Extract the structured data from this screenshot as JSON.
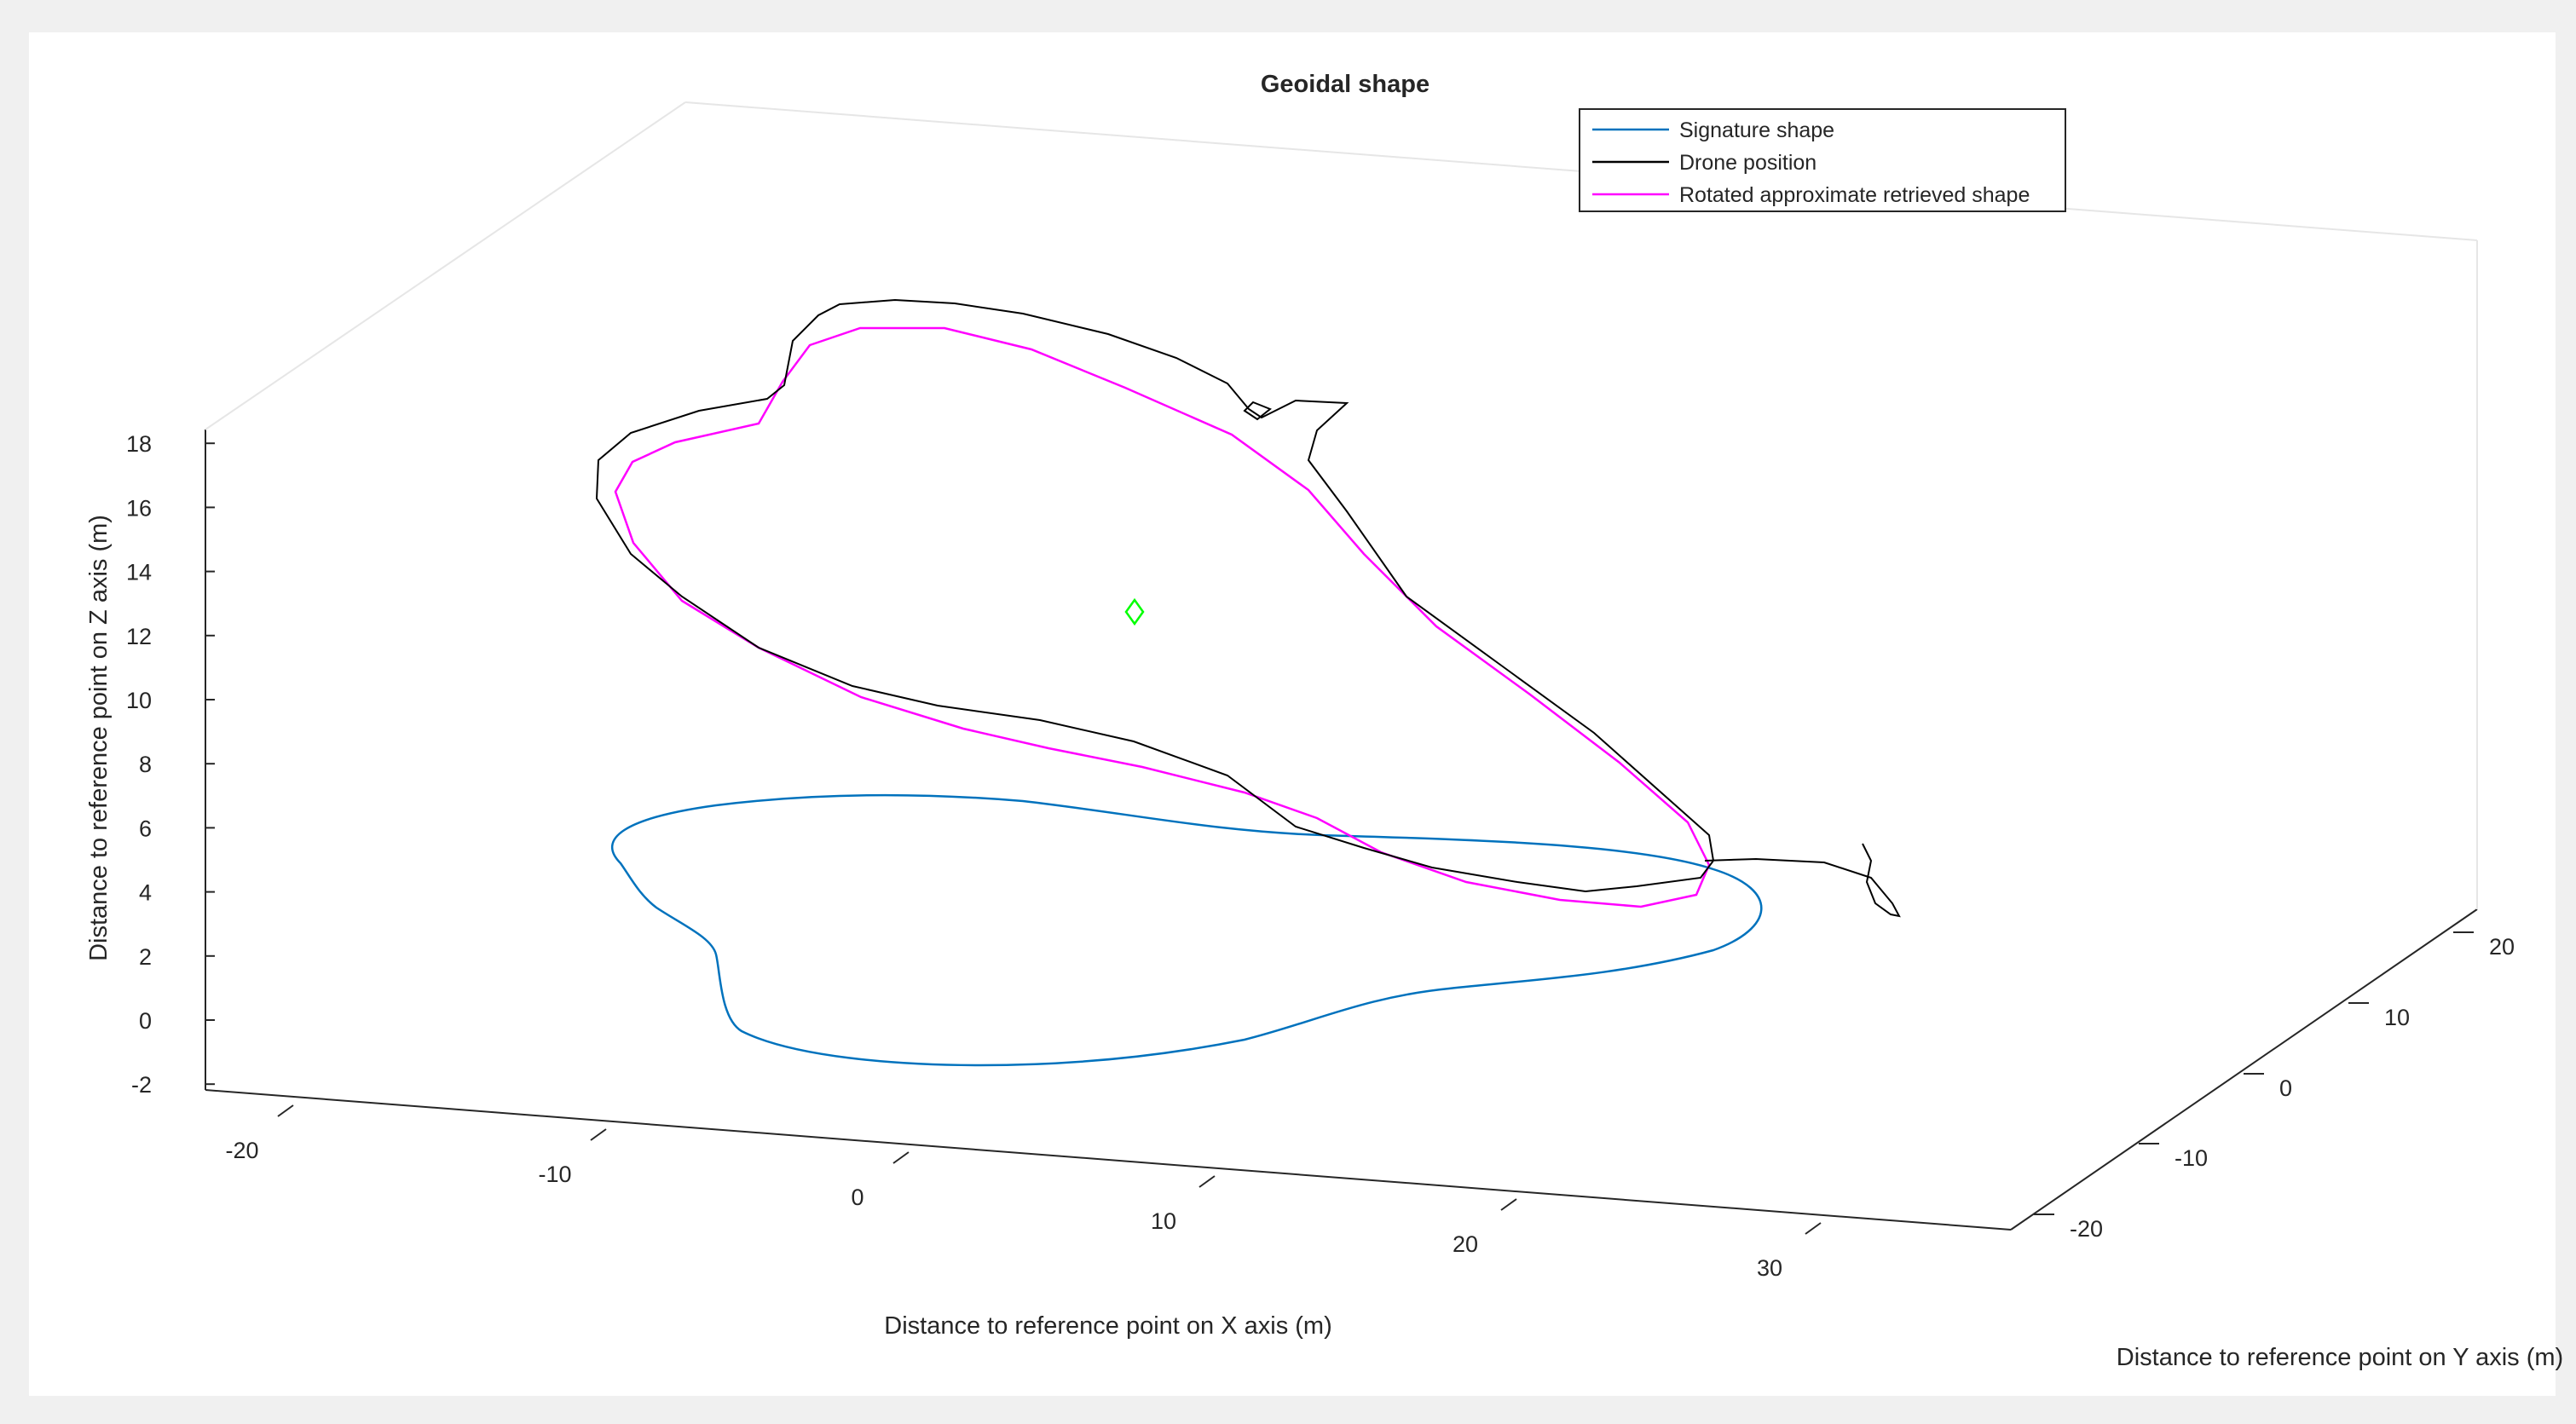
{
  "chart_data": {
    "type": "line",
    "title": "Geoidal shape",
    "xlabel": "Distance to reference point on X axis (m)",
    "ylabel": "Distance to reference point on Y axis (m)",
    "zlabel": "Distance to reference point on Z axis (m)",
    "x_ticks": [
      -20,
      -10,
      0,
      10,
      20,
      30
    ],
    "y_ticks": [
      -20,
      -10,
      0,
      10,
      20
    ],
    "z_ticks": [
      -2,
      0,
      2,
      4,
      6,
      8,
      10,
      12,
      14,
      16,
      18
    ],
    "z_lim": [
      -3,
      19
    ],
    "grid": false,
    "legend_position": "top-right",
    "legend": [
      {
        "name": "Signature shape",
        "color": "#0072BD"
      },
      {
        "name": "Drone position",
        "color": "#000000"
      },
      {
        "name": "Rotated approximate retrieved shape",
        "color": "#FF00FF"
      }
    ],
    "marker": {
      "type": "diamond",
      "color": "#00FF00"
    }
  }
}
